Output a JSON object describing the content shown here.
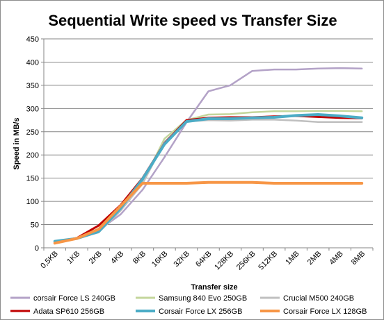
{
  "chart_data": {
    "type": "line",
    "title": "Sequential Write speed vs Transfer Size",
    "xlabel": "Transfer size",
    "ylabel": "Speed in MB/s",
    "ylim": [
      0,
      450
    ],
    "yticks": [
      0,
      50,
      100,
      150,
      200,
      250,
      300,
      350,
      400,
      450
    ],
    "grid": true,
    "legend_position": "bottom",
    "categories": [
      "0,5KB",
      "1KB",
      "2KB",
      "4KB",
      "8KB",
      "16KB",
      "32KB",
      "64KB",
      "128KB",
      "256KB",
      "512KB",
      "1MB",
      "2MB",
      "4MB",
      "8MB"
    ],
    "series": [
      {
        "name": "corsair Force LS 240GB",
        "color": "#b3a2c7",
        "width": 2.5,
        "values": [
          12,
          20,
          38,
          72,
          125,
          195,
          270,
          337,
          350,
          381,
          384,
          384,
          386,
          387,
          386
        ]
      },
      {
        "name": "Samsung 840 Evo 250GB",
        "color": "#c3d69b",
        "width": 2.5,
        "values": [
          13,
          20,
          36,
          82,
          140,
          235,
          275,
          287,
          288,
          292,
          294,
          294,
          295,
          295,
          294
        ]
      },
      {
        "name": "Crucial M500 240GB",
        "color": "#bfbfbf",
        "width": 2.5,
        "values": [
          12,
          20,
          33,
          80,
          138,
          228,
          272,
          275,
          274,
          276,
          276,
          274,
          271,
          271,
          271
        ]
      },
      {
        "name": "Adata SP610 256GB",
        "color": "#c00000",
        "width": 3,
        "values": [
          12,
          21,
          48,
          92,
          150,
          225,
          275,
          280,
          281,
          281,
          283,
          284,
          282,
          280,
          279
        ]
      },
      {
        "name": "Corsair Force LX 256GB",
        "color": "#4bacc6",
        "width": 4,
        "values": [
          14,
          20,
          35,
          85,
          148,
          223,
          272,
          278,
          278,
          280,
          281,
          285,
          287,
          284,
          280
        ]
      },
      {
        "name": "Corsair Force LX 128GB",
        "color": "#f79646",
        "width": 4,
        "values": [
          10,
          20,
          40,
          90,
          139,
          139,
          139,
          141,
          141,
          141,
          139,
          139,
          139,
          139,
          139
        ]
      }
    ]
  }
}
